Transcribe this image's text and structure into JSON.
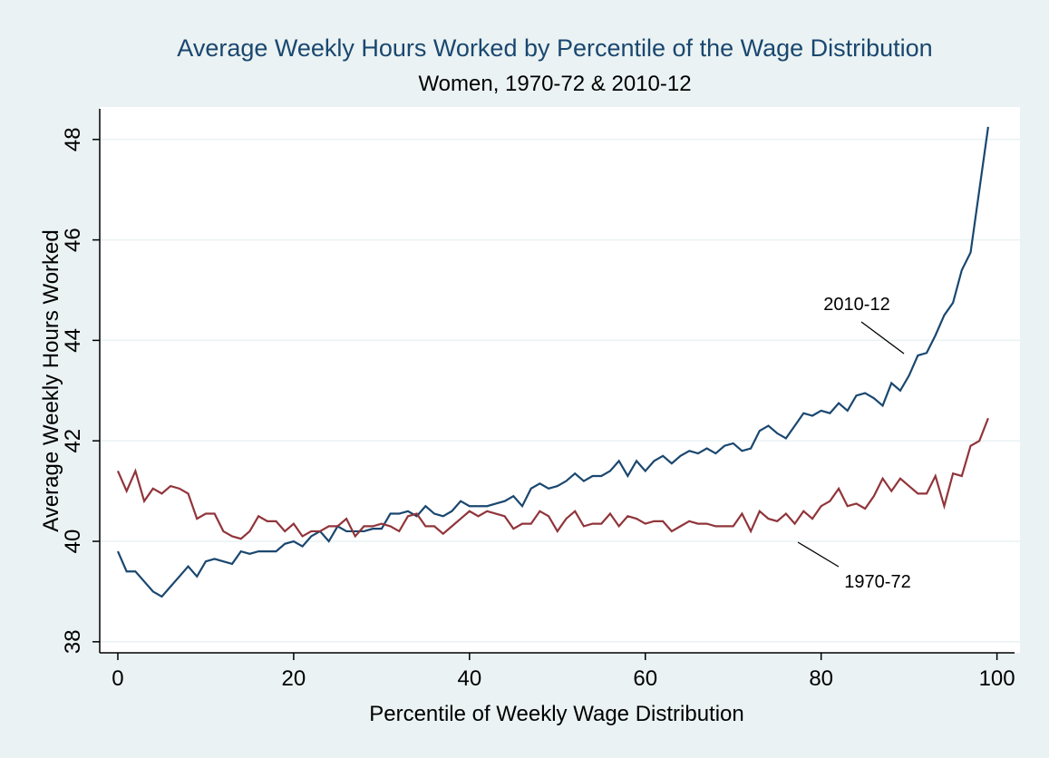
{
  "chart_data": {
    "type": "line",
    "title": "Average Weekly Hours Worked by Percentile of the Wage Distribution",
    "subtitle": "Women, 1970-72 & 2010-12",
    "x_label": "Percentile of Weekly Wage Distribution",
    "y_label": "Average Weekly Hours Worked",
    "x": [
      0,
      1,
      2,
      3,
      4,
      5,
      6,
      7,
      8,
      9,
      10,
      11,
      12,
      13,
      14,
      15,
      16,
      17,
      18,
      19,
      20,
      21,
      22,
      23,
      24,
      25,
      26,
      27,
      28,
      29,
      30,
      31,
      32,
      33,
      34,
      35,
      36,
      37,
      38,
      39,
      40,
      41,
      42,
      43,
      44,
      45,
      46,
      47,
      48,
      49,
      50,
      51,
      52,
      53,
      54,
      55,
      56,
      57,
      58,
      59,
      60,
      61,
      62,
      63,
      64,
      65,
      66,
      67,
      68,
      69,
      70,
      71,
      72,
      73,
      74,
      75,
      76,
      77,
      78,
      79,
      80,
      81,
      82,
      83,
      84,
      85,
      86,
      87,
      88,
      89,
      90,
      91,
      92,
      93,
      94,
      95,
      96,
      97,
      98,
      99
    ],
    "series": [
      {
        "name": "2010-12",
        "color": "#1a476f",
        "values": [
          39.8,
          39.4,
          39.4,
          39.2,
          39.0,
          38.9,
          39.1,
          39.3,
          39.5,
          39.3,
          39.6,
          39.65,
          39.6,
          39.55,
          39.8,
          39.75,
          39.8,
          39.8,
          39.8,
          39.95,
          40.0,
          39.9,
          40.1,
          40.2,
          40.0,
          40.3,
          40.2,
          40.2,
          40.2,
          40.25,
          40.25,
          40.55,
          40.55,
          40.6,
          40.5,
          40.7,
          40.55,
          40.5,
          40.6,
          40.8,
          40.7,
          40.7,
          40.7,
          40.75,
          40.8,
          40.9,
          40.7,
          41.05,
          41.15,
          41.05,
          41.1,
          41.2,
          41.35,
          41.2,
          41.3,
          41.3,
          41.4,
          41.6,
          41.3,
          41.6,
          41.4,
          41.6,
          41.7,
          41.55,
          41.7,
          41.8,
          41.75,
          41.85,
          41.75,
          41.9,
          41.95,
          41.8,
          41.85,
          42.2,
          42.3,
          42.15,
          42.05,
          42.3,
          42.55,
          42.5,
          42.6,
          42.55,
          42.75,
          42.6,
          42.9,
          42.95,
          42.85,
          42.7,
          43.15,
          43.0,
          43.3,
          43.7,
          43.75,
          44.1,
          44.5,
          44.75,
          45.4,
          45.75,
          47.0,
          48.25
        ]
      },
      {
        "name": "1970-72",
        "color": "#90353b",
        "values": [
          41.4,
          41.0,
          41.4,
          40.8,
          41.05,
          40.95,
          41.1,
          41.05,
          40.95,
          40.45,
          40.55,
          40.55,
          40.2,
          40.1,
          40.05,
          40.2,
          40.5,
          40.4,
          40.4,
          40.2,
          40.35,
          40.1,
          40.2,
          40.2,
          40.3,
          40.3,
          40.45,
          40.1,
          40.3,
          40.3,
          40.35,
          40.3,
          40.2,
          40.5,
          40.55,
          40.3,
          40.3,
          40.15,
          40.3,
          40.45,
          40.6,
          40.5,
          40.6,
          40.55,
          40.5,
          40.25,
          40.35,
          40.35,
          40.6,
          40.5,
          40.2,
          40.45,
          40.6,
          40.3,
          40.35,
          40.35,
          40.55,
          40.3,
          40.5,
          40.45,
          40.35,
          40.4,
          40.4,
          40.2,
          40.3,
          40.4,
          40.35,
          40.35,
          40.3,
          40.3,
          40.3,
          40.55,
          40.2,
          40.6,
          40.45,
          40.4,
          40.55,
          40.35,
          40.6,
          40.45,
          40.7,
          40.8,
          41.05,
          40.7,
          40.75,
          40.65,
          40.9,
          41.25,
          41.0,
          41.25,
          41.1,
          40.95,
          40.95,
          41.3,
          40.7,
          41.35,
          41.3,
          41.9,
          42.0,
          42.45
        ]
      }
    ],
    "xlim": [
      -2.06,
      102
    ],
    "xticks": [
      0,
      20,
      40,
      60,
      80,
      100
    ],
    "ylim": [
      37.78,
      48.61
    ],
    "yticks": [
      38,
      40,
      42,
      44,
      46,
      48
    ],
    "grid": true
  }
}
